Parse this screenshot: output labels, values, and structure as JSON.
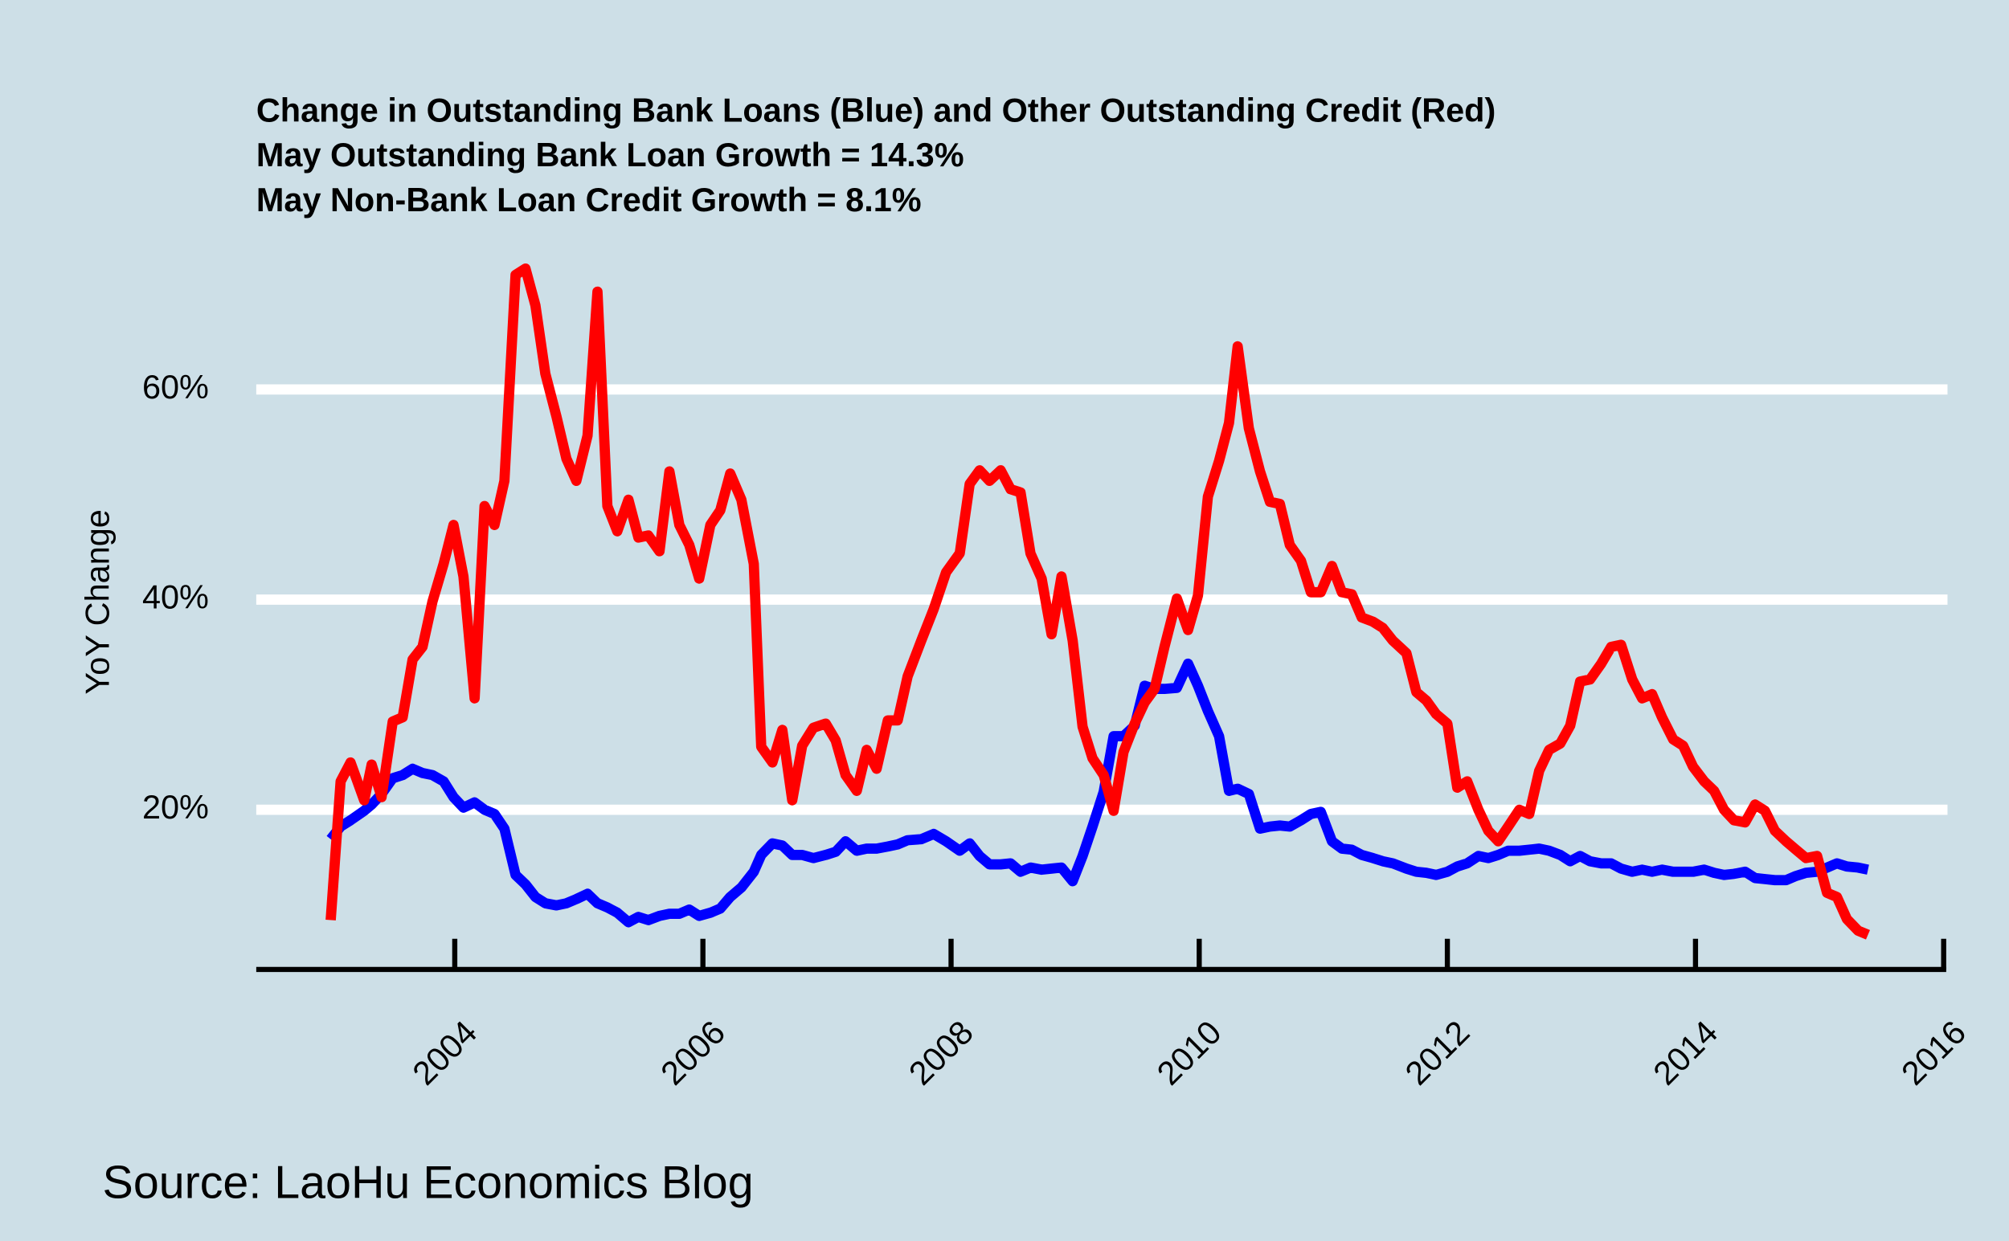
{
  "chart_data": {
    "type": "line",
    "title": "Change in Outstanding Bank Loans (Blue) and Other Outstanding Credit (Red)",
    "subtitles": [
      "May Outstanding Bank Loan Growth = 14.3%",
      "May Non-Bank Loan Credit Growth = 8.1%"
    ],
    "y_label": "YoY Change",
    "source": "Source: LaoHu Economics Blog",
    "x": [
      2003.0,
      2003.08,
      2003.16,
      2003.27,
      2003.33,
      2003.41,
      2003.5,
      2003.58,
      2003.66,
      2003.74,
      2003.82,
      2003.91,
      2003.99,
      2004.07,
      2004.16,
      2004.24,
      2004.32,
      2004.4,
      2004.49,
      2004.57,
      2004.65,
      2004.73,
      2004.82,
      2004.9,
      2004.98,
      2005.07,
      2005.15,
      2005.23,
      2005.31,
      2005.4,
      2005.48,
      2005.56,
      2005.65,
      2005.73,
      2005.81,
      2005.89,
      2005.97,
      2006.06,
      2006.14,
      2006.22,
      2006.31,
      2006.41,
      2006.47,
      2006.56,
      2006.64,
      2006.72,
      2006.8,
      2006.89,
      2006.99,
      2007.07,
      2007.15,
      2007.24,
      2007.32,
      2007.4,
      2007.49,
      2007.57,
      2007.65,
      2007.76,
      2007.86,
      2007.96,
      2008.07,
      2008.15,
      2008.23,
      2008.31,
      2008.4,
      2008.48,
      2008.56,
      2008.64,
      2008.73,
      2008.81,
      2008.89,
      2008.98,
      2009.06,
      2009.14,
      2009.23,
      2009.31,
      2009.39,
      2009.48,
      2009.56,
      2009.64,
      2009.72,
      2009.82,
      2009.91,
      2009.99,
      2010.07,
      2010.16,
      2010.24,
      2010.31,
      2010.4,
      2010.49,
      2010.57,
      2010.65,
      2010.73,
      2010.82,
      2010.9,
      2010.98,
      2011.07,
      2011.15,
      2011.23,
      2011.31,
      2011.4,
      2011.48,
      2011.56,
      2011.67,
      2011.75,
      2011.83,
      2011.91,
      2012.0,
      2012.08,
      2012.16,
      2012.25,
      2012.33,
      2012.41,
      2012.49,
      2012.58,
      2012.66,
      2012.74,
      2012.82,
      2012.91,
      2012.99,
      2013.07,
      2013.15,
      2013.24,
      2013.32,
      2013.4,
      2013.49,
      2013.57,
      2013.65,
      2013.73,
      2013.82,
      2013.9,
      2013.98,
      2014.07,
      2014.15,
      2014.23,
      2014.31,
      2014.4,
      2014.48,
      2014.56,
      2014.64,
      2014.73,
      2014.81,
      2014.89,
      2014.98,
      2015.06,
      2015.14,
      2015.22,
      2015.31,
      2015.39
    ],
    "series": [
      {
        "color": "#0000ff",
        "values": [
          17.2,
          18.4,
          19.0,
          19.9,
          20.5,
          21.5,
          23.0,
          23.3,
          23.9,
          23.5,
          23.3,
          22.7,
          21.2,
          20.2,
          20.7,
          20.0,
          19.6,
          18.2,
          13.8,
          12.9,
          11.7,
          11.1,
          10.9,
          11.1,
          11.5,
          12.0,
          11.1,
          10.7,
          10.2,
          9.3,
          9.8,
          9.5,
          9.9,
          10.1,
          10.1,
          10.5,
          9.9,
          10.2,
          10.6,
          11.7,
          12.6,
          14.1,
          15.7,
          16.8,
          16.6,
          15.7,
          15.7,
          15.4,
          15.7,
          16.0,
          17.0,
          16.1,
          16.3,
          16.3,
          16.5,
          16.7,
          17.1,
          17.2,
          17.7,
          17.0,
          16.1,
          16.8,
          15.6,
          14.8,
          14.8,
          14.9,
          14.1,
          14.5,
          14.3,
          14.4,
          14.5,
          13.2,
          15.6,
          18.4,
          21.7,
          27.0,
          27.0,
          28.0,
          31.8,
          31.5,
          31.5,
          31.6,
          33.9,
          31.8,
          29.4,
          27.0,
          21.8,
          22.0,
          21.5,
          18.2,
          18.4,
          18.5,
          18.4,
          19.0,
          19.6,
          19.8,
          17.0,
          16.3,
          16.2,
          15.7,
          15.4,
          15.1,
          14.9,
          14.4,
          14.1,
          14.0,
          13.8,
          14.1,
          14.6,
          14.9,
          15.6,
          15.4,
          15.7,
          16.1,
          16.1,
          16.2,
          16.3,
          16.1,
          15.7,
          15.1,
          15.6,
          15.1,
          14.9,
          14.9,
          14.4,
          14.1,
          14.3,
          14.1,
          14.3,
          14.1,
          14.1,
          14.1,
          14.3,
          14.0,
          13.8,
          13.9,
          14.1,
          13.5,
          13.4,
          13.3,
          13.3,
          13.7,
          14.0,
          14.1,
          14.5,
          14.9,
          14.6,
          14.5,
          14.3
        ]
      },
      {
        "color": "#ff0000",
        "values": [
          9.5,
          22.7,
          24.5,
          20.9,
          24.3,
          21.2,
          28.4,
          28.8,
          34.3,
          35.5,
          39.8,
          43.4,
          47.1,
          42.2,
          30.6,
          48.9,
          47.1,
          51.3,
          70.9,
          71.5,
          68.0,
          61.5,
          57.4,
          53.4,
          51.3,
          55.6,
          69.3,
          48.9,
          46.5,
          49.5,
          45.9,
          46.1,
          44.6,
          52.2,
          47.1,
          45.2,
          42.0,
          47.1,
          48.5,
          52.0,
          49.5,
          43.4,
          26.0,
          24.5,
          27.6,
          20.9,
          26.1,
          27.8,
          28.2,
          26.6,
          23.3,
          21.8,
          25.7,
          23.9,
          28.5,
          28.5,
          32.7,
          36.1,
          39.1,
          42.6,
          44.4,
          51.0,
          52.3,
          51.3,
          52.3,
          50.5,
          50.2,
          44.4,
          42.0,
          36.7,
          42.2,
          36.1,
          27.9,
          24.9,
          23.3,
          19.9,
          25.5,
          28.2,
          30.2,
          31.5,
          35.5,
          40.1,
          37.1,
          40.4,
          49.8,
          53.2,
          56.8,
          64.1,
          56.3,
          52.2,
          49.3,
          49.1,
          45.2,
          43.7,
          40.7,
          40.7,
          43.2,
          40.7,
          40.5,
          38.3,
          37.9,
          37.3,
          36.1,
          34.9,
          31.2,
          30.4,
          29.1,
          28.2,
          22.1,
          22.7,
          20.0,
          18.0,
          17.0,
          18.4,
          20.0,
          19.6,
          23.7,
          25.7,
          26.3,
          28.0,
          32.2,
          32.4,
          33.9,
          35.5,
          35.7,
          32.4,
          30.6,
          31.0,
          28.8,
          26.7,
          26.1,
          24.1,
          22.7,
          21.8,
          20.0,
          19.0,
          18.8,
          20.5,
          19.9,
          18.0,
          17.0,
          16.2,
          15.4,
          15.6,
          12.1,
          11.7,
          9.6,
          8.5,
          8.1
        ]
      }
    ],
    "xlim": [
      2002.4,
      2016
    ],
    "xticks": [
      2004,
      2006,
      2008,
      2010,
      2012,
      2014,
      2016
    ],
    "ylim": [
      4.8,
      72
    ],
    "yticks": [
      {
        "value": 20,
        "label": "20%"
      },
      {
        "value": 40,
        "label": "40%"
      },
      {
        "value": 60,
        "label": "60%"
      }
    ],
    "grid": true
  }
}
